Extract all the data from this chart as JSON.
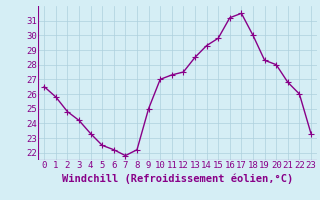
{
  "x": [
    0,
    1,
    2,
    3,
    4,
    5,
    6,
    7,
    8,
    9,
    10,
    11,
    12,
    13,
    14,
    15,
    16,
    17,
    18,
    19,
    20,
    21,
    22,
    23
  ],
  "y": [
    26.5,
    25.8,
    24.8,
    24.2,
    23.3,
    22.5,
    22.2,
    21.8,
    22.2,
    25.0,
    27.0,
    27.3,
    27.5,
    28.5,
    29.3,
    29.8,
    31.2,
    31.5,
    30.0,
    28.3,
    28.0,
    26.8,
    26.0,
    23.3
  ],
  "line_color": "#880088",
  "marker": "+",
  "marker_size": 4,
  "marker_linewidth": 0.8,
  "xlabel": "Windchill (Refroidissement éolien,°C)",
  "xlabel_fontsize": 7.5,
  "ylim": [
    21.5,
    32
  ],
  "yticks": [
    22,
    23,
    24,
    25,
    26,
    27,
    28,
    29,
    30,
    31
  ],
  "xticks": [
    0,
    1,
    2,
    3,
    4,
    5,
    6,
    7,
    8,
    9,
    10,
    11,
    12,
    13,
    14,
    15,
    16,
    17,
    18,
    19,
    20,
    21,
    22,
    23
  ],
  "xlim": [
    -0.5,
    23.5
  ],
  "background_color": "#d5eef5",
  "grid_color": "#aed0dd",
  "tick_color": "#880088",
  "tick_fontsize": 6.5,
  "line_width": 1.0
}
